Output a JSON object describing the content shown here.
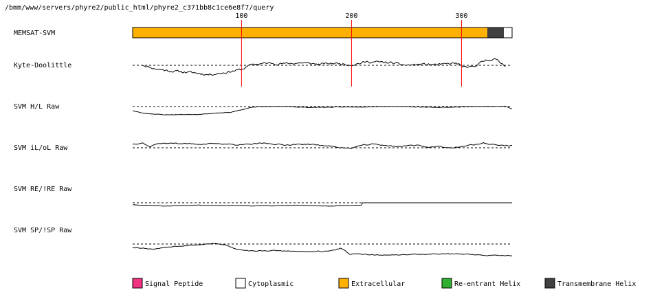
{
  "header": {
    "path": "/bmm/www/servers/phyre2/public_html/phyre2_c371bb8c1ce6e8f7/query"
  },
  "chart_data": {
    "type": "line",
    "x_ticks": [
      100,
      200,
      300
    ],
    "x_range": [
      1,
      346
    ],
    "memsat": {
      "label": "MEMSAT-SVM",
      "segments": [
        {
          "start": 1,
          "end": 323,
          "class": "extracellular",
          "color": "#ffb000"
        },
        {
          "start": 324,
          "end": 338,
          "class": "transmembrane-helix",
          "color": "#404040"
        },
        {
          "start": 339,
          "end": 346,
          "class": "cytoplasmic",
          "color": "#ffffff"
        }
      ]
    },
    "tracks": [
      {
        "label": "Kyte-Doolittle",
        "description": "noisy hydropathy trace, dips below the dashed baseline near residues 20-80 and rises above near 320-335",
        "knots": [
          [
            10,
            0.05
          ],
          [
            20,
            -0.3
          ],
          [
            35,
            -0.55
          ],
          [
            55,
            -0.7
          ],
          [
            70,
            -0.9
          ],
          [
            85,
            -0.7
          ],
          [
            100,
            -0.4
          ],
          [
            110,
            0.1
          ],
          [
            125,
            0.2
          ],
          [
            140,
            0.15
          ],
          [
            155,
            0.25
          ],
          [
            170,
            0.1
          ],
          [
            185,
            0.2
          ],
          [
            200,
            0.05
          ],
          [
            215,
            0.35
          ],
          [
            235,
            0.25
          ],
          [
            250,
            0.0
          ],
          [
            265,
            0.1
          ],
          [
            280,
            0.05
          ],
          [
            295,
            0.2
          ],
          [
            305,
            -0.3
          ],
          [
            315,
            0.1
          ],
          [
            322,
            0.5
          ],
          [
            330,
            0.6
          ],
          [
            340,
            0.0
          ]
        ],
        "x_start": 10,
        "x_end": 340,
        "noise": 0.2,
        "seed": 11
      },
      {
        "label": "SVM H/L Raw",
        "description": "below baseline from residue 1 to ~100, then close to baseline until the end",
        "knots": [
          [
            1,
            -0.5
          ],
          [
            10,
            -0.8
          ],
          [
            30,
            -1.0
          ],
          [
            60,
            -0.95
          ],
          [
            90,
            -0.7
          ],
          [
            100,
            -0.4
          ],
          [
            110,
            -0.05
          ],
          [
            140,
            0.0
          ],
          [
            160,
            -0.1
          ],
          [
            200,
            -0.05
          ],
          [
            240,
            0.0
          ],
          [
            280,
            -0.1
          ],
          [
            300,
            -0.05
          ],
          [
            320,
            0.0
          ],
          [
            340,
            0.05
          ],
          [
            346,
            -0.3
          ]
        ],
        "x_start": 1,
        "x_end": 346,
        "noise": 0.05,
        "seed": 23
      },
      {
        "label": "SVM iL/oL Raw",
        "description": "wavy trace mostly above the dashed baseline with dips near 18, 200 and 270-290",
        "knots": [
          [
            1,
            0.45
          ],
          [
            10,
            0.6
          ],
          [
            17,
            0.1
          ],
          [
            22,
            0.5
          ],
          [
            40,
            0.55
          ],
          [
            60,
            0.45
          ],
          [
            80,
            0.5
          ],
          [
            100,
            0.35
          ],
          [
            120,
            0.55
          ],
          [
            140,
            0.35
          ],
          [
            160,
            0.45
          ],
          [
            180,
            0.2
          ],
          [
            200,
            -0.1
          ],
          [
            205,
            0.2
          ],
          [
            220,
            0.45
          ],
          [
            240,
            0.15
          ],
          [
            260,
            0.35
          ],
          [
            270,
            0.05
          ],
          [
            280,
            0.15
          ],
          [
            290,
            -0.05
          ],
          [
            300,
            0.15
          ],
          [
            320,
            0.55
          ],
          [
            335,
            0.3
          ],
          [
            346,
            0.25
          ]
        ],
        "x_start": 1,
        "x_end": 346,
        "noise": 0.12,
        "seed": 37
      },
      {
        "label": "SVM RE/!RE Raw",
        "description": "slightly below the dashed baseline until ~210, then a flat line at the baseline level",
        "knots": [
          [
            1,
            -0.5
          ],
          [
            30,
            -0.8
          ],
          [
            60,
            -0.6
          ],
          [
            90,
            -0.7
          ],
          [
            120,
            -0.75
          ],
          [
            150,
            -0.6
          ],
          [
            180,
            -0.8
          ],
          [
            209,
            -0.6
          ],
          [
            210,
            0.0
          ],
          [
            346,
            0.0
          ]
        ],
        "x_start": 1,
        "x_end": 346,
        "noise": 0.1,
        "noise_until": 209,
        "seed": 41
      },
      {
        "label": "SVM SP/!SP Raw",
        "description": "near the baseline until ~95 with a small rise near 80, then a lower band until the end with a bump near 190",
        "knots": [
          [
            1,
            -0.4
          ],
          [
            20,
            -0.6
          ],
          [
            40,
            -0.25
          ],
          [
            60,
            -0.1
          ],
          [
            75,
            0.05
          ],
          [
            85,
            -0.1
          ],
          [
            95,
            -0.6
          ],
          [
            110,
            -0.85
          ],
          [
            130,
            -0.8
          ],
          [
            160,
            -0.95
          ],
          [
            180,
            -0.85
          ],
          [
            190,
            -0.5
          ],
          [
            198,
            -1.2
          ],
          [
            230,
            -1.35
          ],
          [
            260,
            -1.25
          ],
          [
            280,
            -1.2
          ],
          [
            300,
            -1.2
          ],
          [
            320,
            -1.35
          ],
          [
            346,
            -1.4
          ]
        ],
        "x_start": 1,
        "x_end": 346,
        "noise": 0.09,
        "seed": 53
      }
    ],
    "legend": [
      {
        "label": "Signal Peptide",
        "color": "#f03280"
      },
      {
        "label": "Cytoplasmic",
        "color": "#ffffff"
      },
      {
        "label": "Extracellular",
        "color": "#ffb000"
      },
      {
        "label": "Re-entrant Helix",
        "color": "#30b030"
      },
      {
        "label": "Transmembrane Helix",
        "color": "#404040"
      }
    ]
  }
}
